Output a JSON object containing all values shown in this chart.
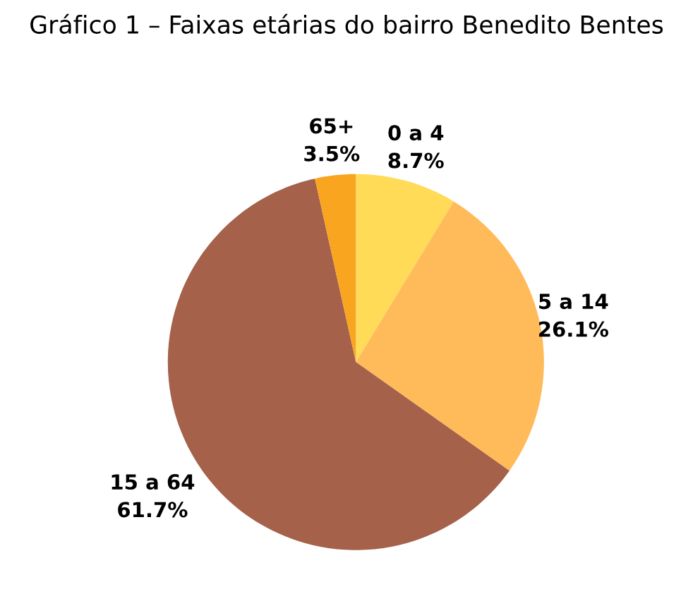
{
  "chart_data": {
    "type": "pie",
    "title": "Gráfico 1 – Faixas etárias do bairro Benedito Bentes",
    "categories": [
      "0 a 4",
      "5 a 14",
      "15 a 64",
      "65+"
    ],
    "values": [
      8.7,
      26.1,
      61.7,
      3.5
    ],
    "value_labels": [
      "8.7%",
      "26.1%",
      "61.7%",
      "3.5%"
    ],
    "colors": [
      "#ffdb58",
      "#ffbb5a",
      "#a5614a",
      "#f9a51f"
    ],
    "legend": false
  }
}
